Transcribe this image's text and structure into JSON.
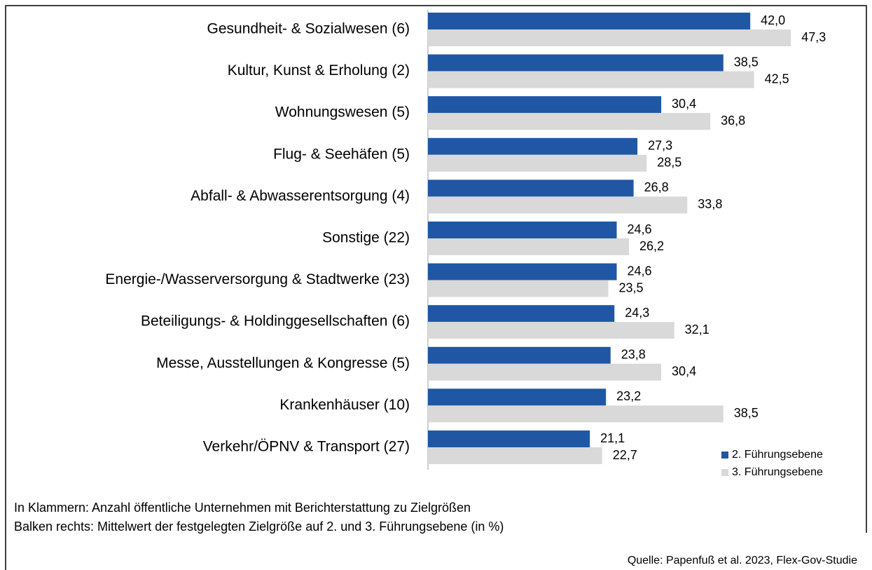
{
  "chart_data": {
    "type": "barh",
    "categories": [
      "Gesundheit- & Sozialwesen (6)",
      "Kultur, Kunst & Erholung (2)",
      "Wohnungswesen (5)",
      "Flug- & Seehäfen (5)",
      "Abfall- & Abwasserentsorgung (4)",
      "Sonstige (22)",
      "Energie-/Wasserversorgung & Stadtwerke (23)",
      "Beteiligungs- & Holdinggesellschaften (6)",
      "Messe, Ausstellungen & Kongresse (5)",
      "Krankenhäuser (10)",
      "Verkehr/ÖPNV & Transport (27)"
    ],
    "series": [
      {
        "name": "2. Führungsebene",
        "color": "#1f57a4",
        "values": [
          42.0,
          38.5,
          30.4,
          27.3,
          26.8,
          24.6,
          24.6,
          24.3,
          23.8,
          23.2,
          21.1
        ],
        "value_labels": [
          "42,0",
          "38,5",
          "30,4",
          "27,3",
          "26,8",
          "24,6",
          "24,6",
          "24,3",
          "23,8",
          "23,2",
          "21,1"
        ]
      },
      {
        "name": "3. Führungsebene",
        "color": "#d9d9d9",
        "values": [
          47.3,
          42.5,
          36.8,
          28.5,
          33.8,
          26.2,
          23.5,
          32.1,
          30.4,
          38.5,
          22.7
        ],
        "value_labels": [
          "47,3",
          "42,5",
          "36,8",
          "28,5",
          "33,8",
          "26,2",
          "23,5",
          "32,1",
          "30,4",
          "38,5",
          "22,7"
        ]
      }
    ],
    "xlim": [
      0,
      56.5
    ],
    "legend": "lower right",
    "notes": [
      "In Klammern: Anzahl öffentliche Unternehmen mit Berichterstattung zu Zielgrößen",
      "Balken rechts: Mittelwert der festgelegten Zielgröße auf 2. und 3. Führungsebene (in %)"
    ],
    "source": "Quelle: Papenfuß et al. 2023, Flex-Gov-Studie"
  }
}
